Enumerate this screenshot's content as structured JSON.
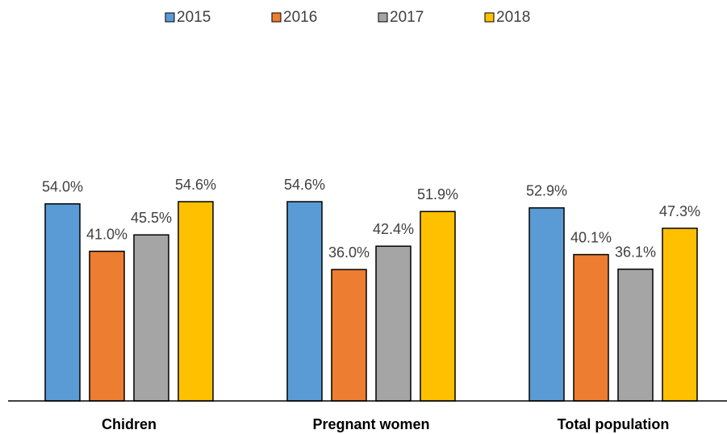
{
  "chart_data": {
    "type": "bar",
    "categories": [
      "Chidren",
      "Pregnant women",
      "Total population"
    ],
    "series": [
      {
        "name": "2015",
        "color": "#5b9bd5",
        "values": [
          54.0,
          54.6,
          52.9
        ],
        "value_labels": [
          "54.0%",
          "54.6%",
          "52.9%"
        ]
      },
      {
        "name": "2016",
        "color": "#ed7d31",
        "values": [
          41.0,
          36.0,
          40.1
        ],
        "value_labels": [
          "41.0%",
          "36.0%",
          "40.1%"
        ]
      },
      {
        "name": "2017",
        "color": "#a5a5a5",
        "values": [
          45.5,
          42.4,
          36.1
        ],
        "value_labels": [
          "45.5%",
          "42.4%",
          "36.1%"
        ]
      },
      {
        "name": "2018",
        "color": "#ffc000",
        "values": [
          54.6,
          51.9,
          47.3
        ],
        "value_labels": [
          "54.6%",
          "51.9%",
          "47.3%"
        ]
      }
    ],
    "legend": "top"
  }
}
